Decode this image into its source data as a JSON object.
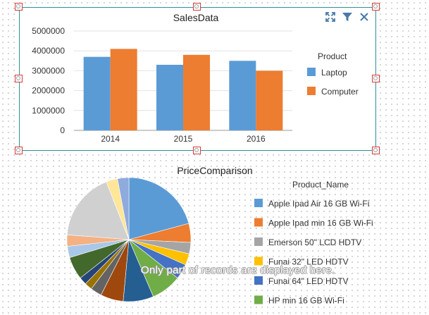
{
  "colors": {
    "laptop": "#5b9bd5",
    "computer": "#ed7d31",
    "frame": "#2f8f95",
    "handle": "#d83b3b"
  },
  "toolbar": {
    "icons": [
      "expand-icon",
      "filter-icon",
      "close-icon"
    ]
  },
  "notice": "Only part of records are displayed here.",
  "chart_data": [
    {
      "type": "bar",
      "title": "SalesData",
      "categories": [
        "2014",
        "2015",
        "2016"
      ],
      "series": [
        {
          "name": "Laptop",
          "values": [
            3700000,
            3300000,
            3500000
          ],
          "color": "#5b9bd5"
        },
        {
          "name": "Computer",
          "values": [
            4100000,
            3800000,
            3000000
          ],
          "color": "#ed7d31"
        }
      ],
      "ylim": [
        0,
        5000000
      ],
      "yticks": [
        0,
        1000000,
        2000000,
        3000000,
        4000000,
        5000000
      ],
      "legend_title": "Product",
      "legend_position": "right",
      "grid": true
    },
    {
      "type": "pie",
      "title": "PriceComparison",
      "legend_title": "Product_Name",
      "legend_position": "right",
      "legend_entries": [
        {
          "name": "Apple Ipad Air 16 GB Wi-Fi",
          "color": "#5b9bd5"
        },
        {
          "name": "Apple Ipad min 16 GB Wi-Fi",
          "color": "#ed7d31"
        },
        {
          "name": "Emerson 50\" LCD HDTV",
          "color": "#a5a5a5"
        },
        {
          "name": "Funai 32\" LED HDTV",
          "color": "#ffc000"
        },
        {
          "name": "Funai 64\" LED HDTV",
          "color": "#4472c4"
        },
        {
          "name": "HP min 16 GB Wi-Fi",
          "color": "#70ad47"
        }
      ],
      "slices": [
        {
          "value": 21,
          "color": "#5b9bd5"
        },
        {
          "value": 5,
          "color": "#ed7d31"
        },
        {
          "value": 3,
          "color": "#a5a5a5"
        },
        {
          "value": 3,
          "color": "#ffc000"
        },
        {
          "value": 4,
          "color": "#4472c4"
        },
        {
          "value": 8,
          "color": "#70ad47"
        },
        {
          "value": 8,
          "color": "#255e91"
        },
        {
          "value": 6,
          "color": "#9e480e"
        },
        {
          "value": 3,
          "color": "#636363"
        },
        {
          "value": 2,
          "color": "#997300"
        },
        {
          "value": 2,
          "color": "#264478"
        },
        {
          "value": 6,
          "color": "#43682b"
        },
        {
          "value": 3,
          "color": "#a9c7e8"
        },
        {
          "value": 3,
          "color": "#f4b183"
        },
        {
          "value": 18,
          "color": "#d0d0d0"
        },
        {
          "value": 3,
          "color": "#ffe699"
        },
        {
          "value": 3,
          "color": "#8faadc"
        }
      ]
    }
  ]
}
